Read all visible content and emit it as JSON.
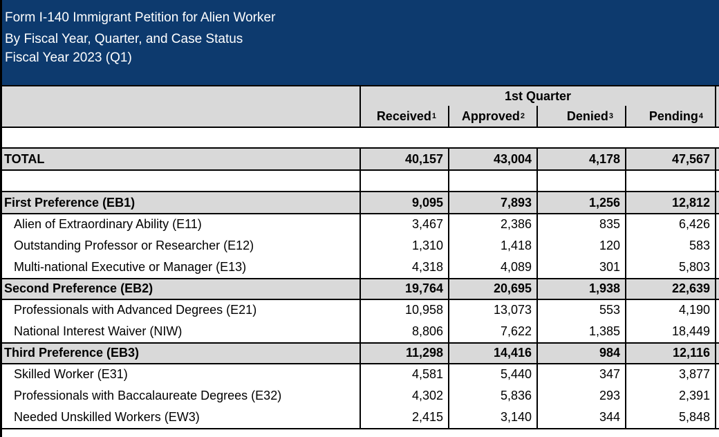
{
  "title": {
    "line1": "Form I-140 Immigrant Petition for Alien Worker",
    "line2": "By Fiscal Year, Quarter, and Case Status",
    "line3": "Fiscal Year 2023 (Q1)"
  },
  "header": {
    "quarter": "1st Quarter",
    "columns": [
      {
        "label": "Received",
        "note": "1"
      },
      {
        "label": "Approved",
        "note": "2"
      },
      {
        "label": "Denied",
        "note": "3"
      },
      {
        "label": "Pending",
        "note": "4"
      }
    ]
  },
  "total": {
    "label": "TOTAL",
    "values": [
      "40,157",
      "43,004",
      "4,178",
      "47,567"
    ]
  },
  "groups": [
    {
      "label": "First Preference (EB1)",
      "values": [
        "9,095",
        "7,893",
        "1,256",
        "12,812"
      ],
      "items": [
        {
          "label": "Alien of Extraordinary Ability (E11)",
          "values": [
            "3,467",
            "2,386",
            "835",
            "6,426"
          ]
        },
        {
          "label": "Outstanding Professor or Researcher (E12)",
          "values": [
            "1,310",
            "1,418",
            "120",
            "583"
          ]
        },
        {
          "label": "Multi-national Executive or Manager (E13)",
          "values": [
            "4,318",
            "4,089",
            "301",
            "5,803"
          ]
        }
      ]
    },
    {
      "label": "Second Preference (EB2)",
      "values": [
        "19,764",
        "20,695",
        "1,938",
        "22,639"
      ],
      "items": [
        {
          "label": "Professionals with Advanced Degrees (E21)",
          "values": [
            "10,958",
            "13,073",
            "553",
            "4,190"
          ]
        },
        {
          "label": "National Interest Waiver (NIW)",
          "values": [
            "8,806",
            "7,622",
            "1,385",
            "18,449"
          ]
        }
      ]
    },
    {
      "label": "Third Preference (EB3)",
      "values": [
        "11,298",
        "14,416",
        "984",
        "12,116"
      ],
      "items": [
        {
          "label": "Skilled Worker (E31)",
          "values": [
            "4,581",
            "5,440",
            "347",
            "3,877"
          ]
        },
        {
          "label": "Professionals with Baccalaureate Degrees (E32)",
          "values": [
            "4,302",
            "5,836",
            "293",
            "2,391"
          ]
        },
        {
          "label": "Needed Unskilled Workers (EW3)",
          "values": [
            "2,415",
            "3,140",
            "344",
            "5,848"
          ]
        }
      ]
    }
  ]
}
